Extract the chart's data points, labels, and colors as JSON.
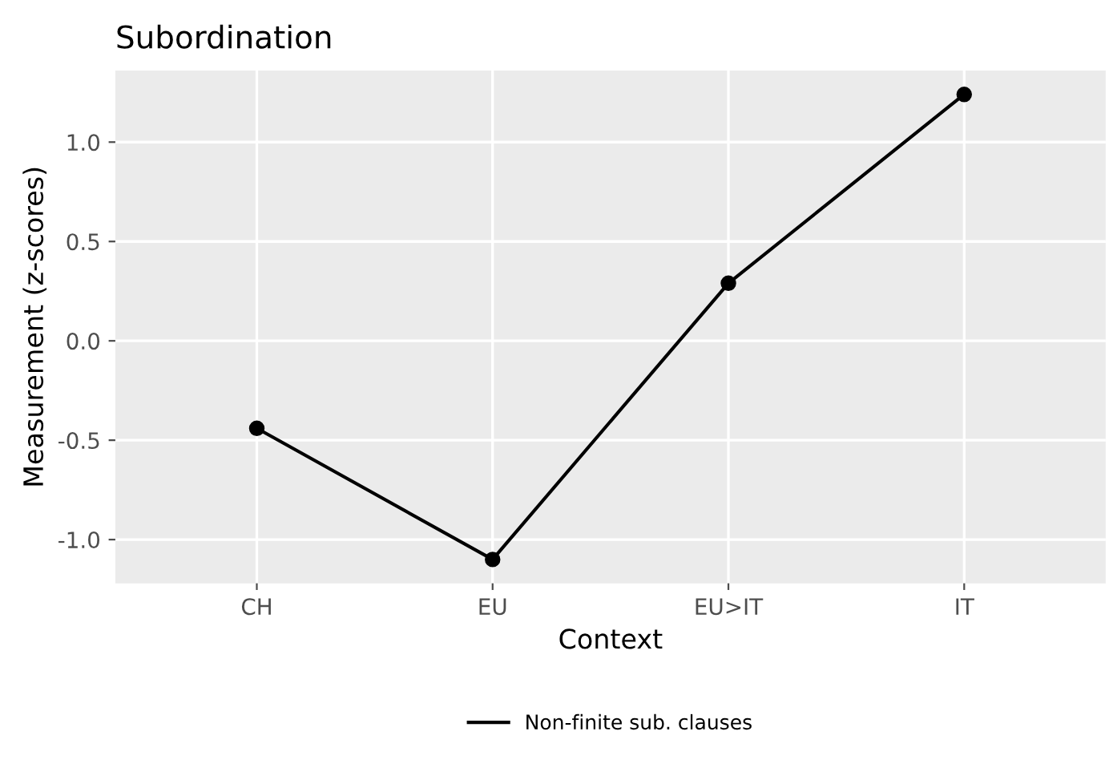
{
  "chart_data": {
    "type": "line",
    "title": "Subordination",
    "xlabel": "Context",
    "ylabel": "Measurement (z-scores)",
    "categories": [
      "CH",
      "EU",
      "EU>IT",
      "IT"
    ],
    "series": [
      {
        "name": "Non-finite sub. clauses",
        "color": "#000000",
        "values": [
          -0.44,
          -1.1,
          0.29,
          1.24
        ]
      }
    ],
    "ylim": [
      -1.22,
      1.36
    ],
    "yticks": [
      {
        "value": -1.0,
        "label": "-1.0"
      },
      {
        "value": -0.5,
        "label": "-0.5"
      },
      {
        "value": 0.0,
        "label": "0.0"
      },
      {
        "value": 0.5,
        "label": "0.5"
      },
      {
        "value": 1.0,
        "label": "1.0"
      }
    ],
    "grid": true,
    "legend": "bottom",
    "marker": "circle",
    "line_style": "solid"
  }
}
